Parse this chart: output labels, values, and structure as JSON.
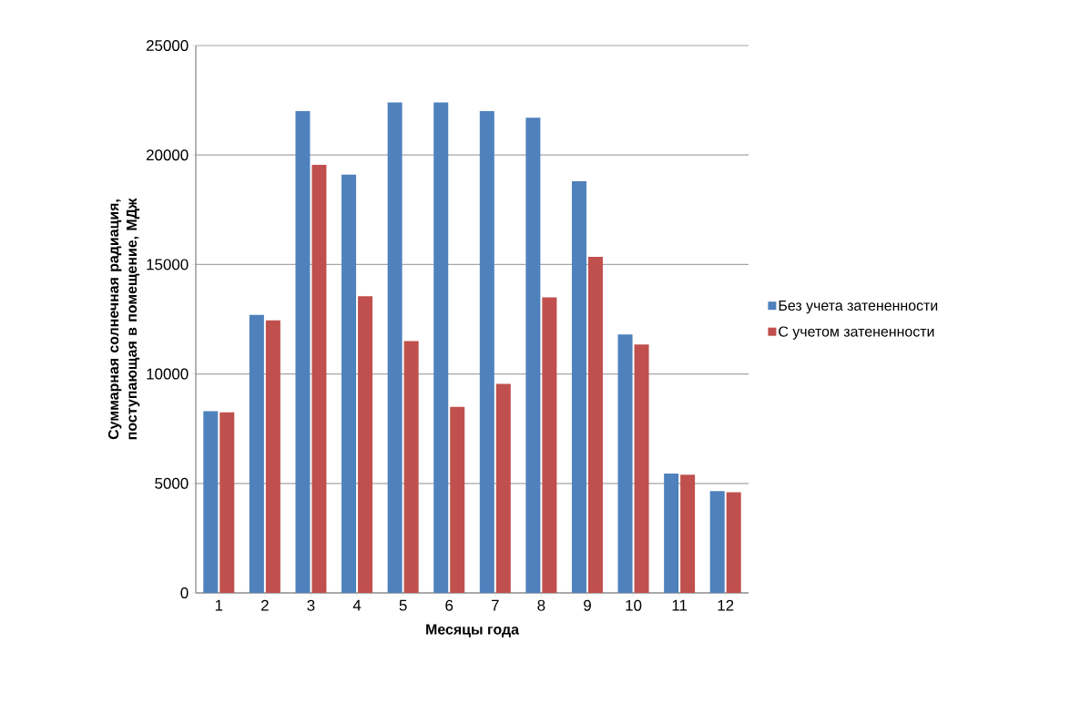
{
  "chart_data": {
    "type": "bar",
    "xlabel": "Месяцы года",
    "ylabel": "Суммарная солнечная радиация, поступающая в помещение, МДж",
    "categories": [
      "1",
      "2",
      "3",
      "4",
      "5",
      "6",
      "7",
      "8",
      "9",
      "10",
      "11",
      "12"
    ],
    "series": [
      {
        "name": "Без учета затененности",
        "color": "#4f81bd",
        "values": [
          8300,
          12700,
          22000,
          19100,
          22400,
          22400,
          22000,
          21700,
          18800,
          11800,
          5450,
          4650
        ]
      },
      {
        "name": "С учетом затененности",
        "color": "#c0504d",
        "values": [
          8250,
          12450,
          19550,
          13550,
          11500,
          8500,
          9550,
          13500,
          15350,
          11350,
          5400,
          4600
        ]
      }
    ],
    "ylim": [
      0,
      25000
    ],
    "yticks": [
      0,
      5000,
      10000,
      15000,
      20000,
      25000
    ],
    "grid": "y",
    "legend": "right"
  }
}
